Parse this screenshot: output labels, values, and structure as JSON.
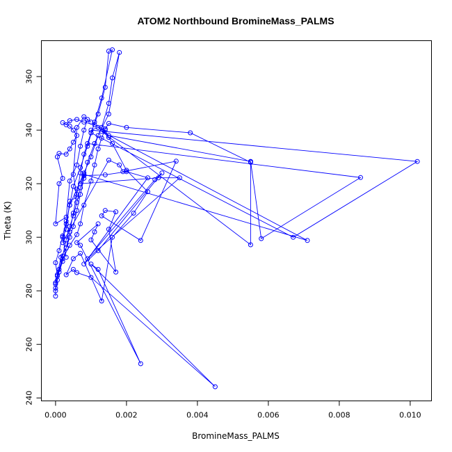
{
  "chart_data": {
    "type": "scatter",
    "title": "ATOM2 Northbound BromineMass_PALMS",
    "xlabel": "BromineMass_PALMS",
    "ylabel": "Theta (K)",
    "xlim": [
      -0.0004,
      0.0106
    ],
    "ylim": [
      238.9,
      373.4
    ],
    "x_ticks": [
      0.0,
      0.002,
      0.004,
      0.006,
      0.008,
      0.01
    ],
    "x_tick_labels": [
      "0.000",
      "0.002",
      "0.004",
      "0.006",
      "0.008",
      "0.010"
    ],
    "y_ticks": [
      240,
      260,
      280,
      300,
      320,
      340,
      360
    ],
    "y_tick_labels": [
      "240",
      "260",
      "280",
      "300",
      "320",
      "340",
      "360"
    ],
    "grid": false,
    "color": "#0000ff",
    "series": [
      {
        "mode": "lines+markers",
        "points": [
          [
            0.0,
            278.0
          ],
          [
            0.0,
            281.0
          ],
          [
            0.0,
            283.0
          ],
          [
            5e-05,
            286.0
          ],
          [
            0.00015,
            292.5
          ],
          [
            0.0003,
            296.0
          ],
          [
            0.0004,
            300.0
          ],
          [
            0.0005,
            304.0
          ],
          [
            0.0006,
            310.0
          ],
          [
            0.0007,
            316.0
          ],
          [
            0.0008,
            322.0
          ],
          [
            0.0009,
            328.0
          ],
          [
            0.0011,
            335.0
          ],
          [
            0.0013,
            341.0
          ],
          [
            0.0015,
            350.0
          ],
          [
            0.0016,
            359.5
          ],
          [
            0.0018,
            369.0
          ],
          [
            0.0015,
            346.0
          ],
          [
            0.0012,
            338.0
          ],
          [
            0.001,
            330.0
          ],
          [
            0.0008,
            324.0
          ],
          [
            0.0006,
            318.0
          ],
          [
            0.0004,
            312.0
          ],
          [
            0.0003,
            306.0
          ],
          [
            0.0002,
            300.5
          ],
          [
            0.0001,
            295.0
          ],
          [
            0.0,
            290.5
          ],
          [
            5e-05,
            285.5
          ],
          [
            0.0002,
            292.0
          ],
          [
            0.0004,
            297.0
          ],
          [
            0.0006,
            301.0
          ],
          [
            0.0007,
            305.0
          ],
          [
            0.0008,
            312.0
          ],
          [
            0.001,
            321.0
          ],
          [
            0.0011,
            327.0
          ],
          [
            0.0012,
            333.0
          ],
          [
            0.0013,
            337.0
          ],
          [
            0.0014,
            340.5
          ],
          [
            0.0015,
            342.5
          ],
          [
            0.002,
            341.0
          ],
          [
            0.0038,
            339.0
          ],
          [
            0.0055,
            328.0
          ],
          [
            0.0055,
            328.3
          ],
          [
            0.0015,
            338.0
          ],
          [
            0.0012,
            341.0
          ],
          [
            0.001,
            340.0
          ],
          [
            0.0102,
            328.3
          ],
          [
            0.0067,
            300.0
          ],
          [
            0.001,
            339.0
          ],
          [
            0.0009,
            335.0
          ],
          [
            0.0086,
            322.3
          ],
          [
            0.0058,
            299.5
          ],
          [
            0.0055,
            328.3
          ],
          [
            0.0055,
            297.2
          ],
          [
            0.0013,
            339.5
          ],
          [
            0.0071,
            298.8
          ],
          [
            0.0008,
            323.5
          ],
          [
            0.0007,
            320.0
          ],
          [
            0.0029,
            322.2
          ],
          [
            0.0035,
            322.2
          ],
          [
            0.0009,
            292.0
          ],
          [
            0.0028,
            321.5
          ],
          [
            0.003,
            324.0
          ],
          [
            0.0012,
            295.0
          ],
          [
            0.0008,
            290.0
          ],
          [
            0.0026,
            322.2
          ],
          [
            0.002,
            324.5
          ],
          [
            0.0014,
            323.3
          ],
          [
            0.0008,
            323.0
          ],
          [
            0.0007,
            318.5
          ],
          [
            0.0006,
            313.0
          ],
          [
            0.0005,
            308.0
          ],
          [
            0.0004,
            304.0
          ],
          [
            0.0003,
            299.0
          ],
          [
            0.0002,
            293.0
          ],
          [
            0.0001,
            288.0
          ],
          [
            5e-05,
            284.0
          ],
          [
            0.0,
            280.0
          ],
          [
            0.0,
            282.5
          ],
          [
            0.0001,
            287.0
          ],
          [
            0.0002,
            291.0
          ],
          [
            0.0003,
            296.0
          ],
          [
            0.0004,
            302.0
          ],
          [
            0.0005,
            309.0
          ],
          [
            0.0006,
            316.0
          ],
          [
            0.0007,
            324.0
          ],
          [
            0.0008,
            331.0
          ],
          [
            0.001,
            339.0
          ],
          [
            0.0012,
            346.0
          ],
          [
            0.0014,
            356.0
          ],
          [
            0.0015,
            369.5
          ],
          [
            0.0016,
            370.0
          ],
          [
            0.0013,
            352.0
          ],
          [
            0.0011,
            343.0
          ],
          [
            0.0009,
            334.0
          ],
          [
            0.0007,
            326.0
          ],
          [
            0.0005,
            319.0
          ],
          [
            0.0004,
            312.0
          ],
          [
            0.0003,
            305.0
          ],
          [
            0.0002,
            298.0
          ],
          [
            0.0015,
            328.8
          ],
          [
            0.0018,
            327.0
          ],
          [
            0.0019,
            324.5
          ],
          [
            0.0034,
            328.4
          ],
          [
            0.0024,
            298.8
          ],
          [
            0.0013,
            308.0
          ],
          [
            0.0014,
            310.0
          ],
          [
            0.0017,
            309.5
          ],
          [
            0.0015,
            303.0
          ],
          [
            0.0017,
            287.0
          ],
          [
            0.001,
            299.0
          ],
          [
            0.0011,
            302.0
          ],
          [
            0.0012,
            305.0
          ],
          [
            0.0006,
            298.0
          ],
          [
            0.0007,
            297.0
          ],
          [
            0.0024,
            252.8
          ],
          [
            0.0012,
            288.0
          ],
          [
            0.001,
            290.0
          ],
          [
            0.0045,
            244.2
          ],
          [
            0.001,
            285.0
          ],
          [
            0.0006,
            286.8
          ],
          [
            0.0005,
            288.0
          ],
          [
            0.0003,
            286.0
          ],
          [
            0.0005,
            292.0
          ],
          [
            0.0007,
            294.0
          ],
          [
            0.0013,
            276.2
          ],
          [
            0.0016,
            300.0
          ],
          [
            0.0022,
            309.0
          ],
          [
            0.0026,
            317.0
          ],
          [
            0.002,
            325.0
          ],
          [
            0.0016,
            335.0
          ],
          [
            0.0015,
            337.3
          ],
          [
            0.0014,
            340.0
          ],
          [
            0.0011,
            342.0
          ],
          [
            0.0008,
            343.0
          ],
          [
            0.0006,
            344.0
          ],
          [
            0.0004,
            343.5
          ],
          [
            0.0003,
            342.0
          ],
          [
            0.0002,
            342.8
          ],
          [
            0.0004,
            341.5
          ],
          [
            0.0005,
            340.0
          ],
          [
            0.0006,
            338.0
          ],
          [
            0.0005,
            335.5
          ],
          [
            0.0004,
            333.0
          ],
          [
            0.0003,
            331.0
          ],
          [
            0.0001,
            331.3
          ],
          [
            5e-05,
            330.0
          ],
          [
            0.0002,
            322.0
          ],
          [
            0.0001,
            320.0
          ],
          [
            0.0,
            305.0
          ],
          [
            0.0003,
            307.5
          ],
          [
            0.0004,
            321.0
          ],
          [
            0.0006,
            327.0
          ],
          [
            0.0007,
            334.0
          ],
          [
            0.0008,
            340.0
          ],
          [
            0.0009,
            344.0
          ],
          [
            0.001,
            343.0
          ],
          [
            0.0008,
            345.0
          ],
          [
            0.0006,
            341.0
          ],
          [
            0.0005,
            323.5
          ],
          [
            0.0006,
            315.0
          ],
          [
            0.0004,
            313.5
          ],
          [
            0.0003,
            303.0
          ],
          [
            0.0002,
            300.0
          ],
          [
            0.0003,
            292.5
          ]
        ]
      }
    ]
  }
}
